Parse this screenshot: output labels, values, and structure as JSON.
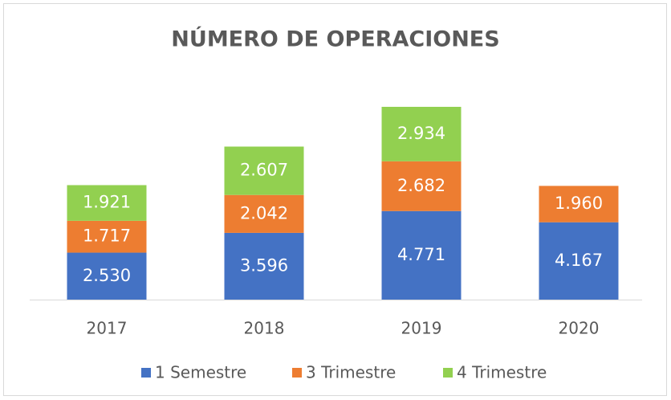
{
  "chart_data": {
    "type": "stacked-bar",
    "title": "NÚMERO DE OPERACIONES",
    "categories": [
      "2017",
      "2018",
      "2019",
      "2020"
    ],
    "series": [
      {
        "name": "1 Semestre",
        "color": "#4472c4",
        "values": [
          2530,
          3596,
          4771,
          4167
        ],
        "value_labels": [
          "2.530",
          "3.596",
          "4.771",
          "4.167"
        ]
      },
      {
        "name": "3 Trimestre",
        "color": "#ed7d31",
        "values": [
          1717,
          2042,
          2682,
          1960
        ],
        "value_labels": [
          "1.717",
          "2.042",
          "2.682",
          "1.960"
        ]
      },
      {
        "name": "4 Trimestre",
        "color": "#92d050",
        "values": [
          1921,
          2607,
          2934,
          0
        ],
        "value_labels": [
          "1.921",
          "2.607",
          "2.934",
          "-"
        ]
      }
    ]
  }
}
